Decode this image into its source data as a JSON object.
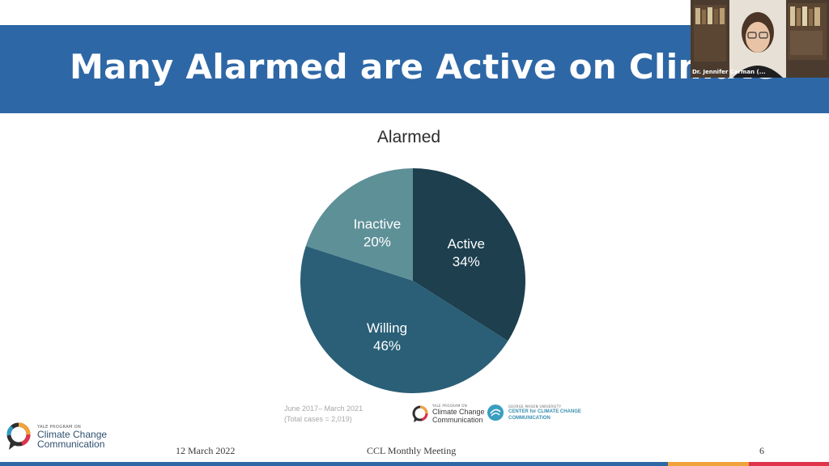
{
  "slide": {
    "title": "Many Alarmed are Active on Climate",
    "source_line1": "June 2017– March 2021",
    "source_line2": "(Total cases = 2,019)",
    "footer_date": "12 March 2022",
    "footer_event": "CCL Monthly Meeting",
    "page_number": "6"
  },
  "logos": {
    "ycc_small": "YALE PROGRAM ON",
    "ycc_line1": "Climate Change",
    "ycc_line2": "Communication",
    "gmu_small": "GEORGE MASON UNIVERSITY",
    "gmu_line1": "CENTER for CLIMATE CHANGE",
    "gmu_line2": "COMMUNICATION"
  },
  "video": {
    "caption": "Dr. Jennifer Carman (..."
  },
  "colors": {
    "title_bar": "#2e67a6",
    "active": "#1d3f4e",
    "willing": "#2a5f77",
    "inactive": "#5e9098",
    "stripe_blue": "#2e67a6",
    "stripe_orange": "#f2a23a",
    "stripe_red": "#e0334c"
  },
  "chart_data": {
    "type": "pie",
    "title": "Alarmed",
    "categories": [
      "Active",
      "Willing",
      "Inactive"
    ],
    "values": [
      34,
      46,
      20
    ],
    "labels": [
      "34%",
      "46%",
      "20%"
    ]
  }
}
